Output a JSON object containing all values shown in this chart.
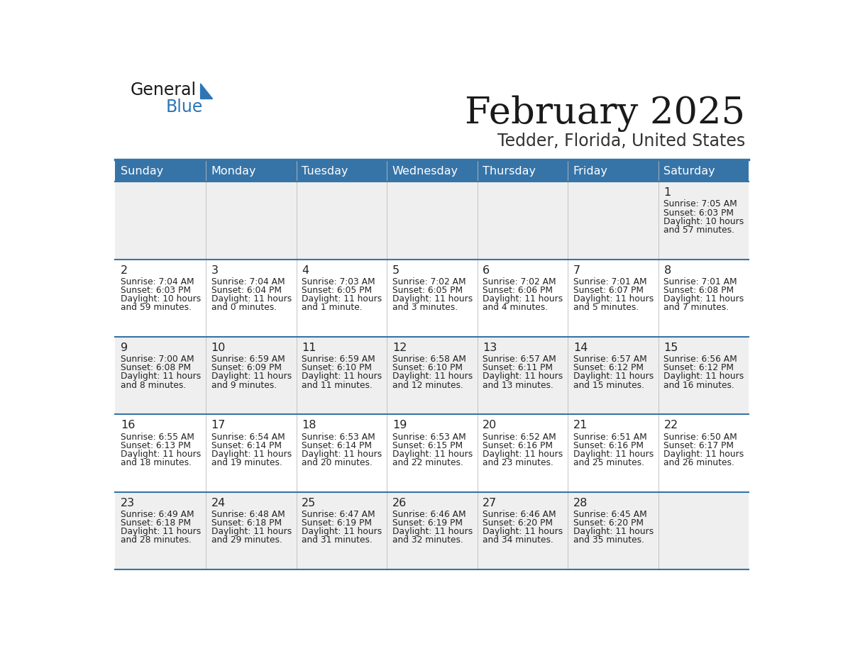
{
  "title": "February 2025",
  "subtitle": "Tedder, Florida, United States",
  "header_bg": "#3674A8",
  "header_text_color": "#FFFFFF",
  "day_names": [
    "Sunday",
    "Monday",
    "Tuesday",
    "Wednesday",
    "Thursday",
    "Friday",
    "Saturday"
  ],
  "row_odd_bg": "#EFEFEF",
  "row_even_bg": "#FFFFFF",
  "cell_text_color": "#222222",
  "day_num_color": "#222222",
  "border_color": "#3674A8",
  "weeks": [
    [
      {
        "day": null,
        "sunrise": null,
        "sunset": null,
        "daylight": null
      },
      {
        "day": null,
        "sunrise": null,
        "sunset": null,
        "daylight": null
      },
      {
        "day": null,
        "sunrise": null,
        "sunset": null,
        "daylight": null
      },
      {
        "day": null,
        "sunrise": null,
        "sunset": null,
        "daylight": null
      },
      {
        "day": null,
        "sunrise": null,
        "sunset": null,
        "daylight": null
      },
      {
        "day": null,
        "sunrise": null,
        "sunset": null,
        "daylight": null
      },
      {
        "day": 1,
        "sunrise": "7:05 AM",
        "sunset": "6:03 PM",
        "daylight": "10 hours and 57 minutes."
      }
    ],
    [
      {
        "day": 2,
        "sunrise": "7:04 AM",
        "sunset": "6:03 PM",
        "daylight": "10 hours and 59 minutes."
      },
      {
        "day": 3,
        "sunrise": "7:04 AM",
        "sunset": "6:04 PM",
        "daylight": "11 hours and 0 minutes."
      },
      {
        "day": 4,
        "sunrise": "7:03 AM",
        "sunset": "6:05 PM",
        "daylight": "11 hours and 1 minute."
      },
      {
        "day": 5,
        "sunrise": "7:02 AM",
        "sunset": "6:05 PM",
        "daylight": "11 hours and 3 minutes."
      },
      {
        "day": 6,
        "sunrise": "7:02 AM",
        "sunset": "6:06 PM",
        "daylight": "11 hours and 4 minutes."
      },
      {
        "day": 7,
        "sunrise": "7:01 AM",
        "sunset": "6:07 PM",
        "daylight": "11 hours and 5 minutes."
      },
      {
        "day": 8,
        "sunrise": "7:01 AM",
        "sunset": "6:08 PM",
        "daylight": "11 hours and 7 minutes."
      }
    ],
    [
      {
        "day": 9,
        "sunrise": "7:00 AM",
        "sunset": "6:08 PM",
        "daylight": "11 hours and 8 minutes."
      },
      {
        "day": 10,
        "sunrise": "6:59 AM",
        "sunset": "6:09 PM",
        "daylight": "11 hours and 9 minutes."
      },
      {
        "day": 11,
        "sunrise": "6:59 AM",
        "sunset": "6:10 PM",
        "daylight": "11 hours and 11 minutes."
      },
      {
        "day": 12,
        "sunrise": "6:58 AM",
        "sunset": "6:10 PM",
        "daylight": "11 hours and 12 minutes."
      },
      {
        "day": 13,
        "sunrise": "6:57 AM",
        "sunset": "6:11 PM",
        "daylight": "11 hours and 13 minutes."
      },
      {
        "day": 14,
        "sunrise": "6:57 AM",
        "sunset": "6:12 PM",
        "daylight": "11 hours and 15 minutes."
      },
      {
        "day": 15,
        "sunrise": "6:56 AM",
        "sunset": "6:12 PM",
        "daylight": "11 hours and 16 minutes."
      }
    ],
    [
      {
        "day": 16,
        "sunrise": "6:55 AM",
        "sunset": "6:13 PM",
        "daylight": "11 hours and 18 minutes."
      },
      {
        "day": 17,
        "sunrise": "6:54 AM",
        "sunset": "6:14 PM",
        "daylight": "11 hours and 19 minutes."
      },
      {
        "day": 18,
        "sunrise": "6:53 AM",
        "sunset": "6:14 PM",
        "daylight": "11 hours and 20 minutes."
      },
      {
        "day": 19,
        "sunrise": "6:53 AM",
        "sunset": "6:15 PM",
        "daylight": "11 hours and 22 minutes."
      },
      {
        "day": 20,
        "sunrise": "6:52 AM",
        "sunset": "6:16 PM",
        "daylight": "11 hours and 23 minutes."
      },
      {
        "day": 21,
        "sunrise": "6:51 AM",
        "sunset": "6:16 PM",
        "daylight": "11 hours and 25 minutes."
      },
      {
        "day": 22,
        "sunrise": "6:50 AM",
        "sunset": "6:17 PM",
        "daylight": "11 hours and 26 minutes."
      }
    ],
    [
      {
        "day": 23,
        "sunrise": "6:49 AM",
        "sunset": "6:18 PM",
        "daylight": "11 hours and 28 minutes."
      },
      {
        "day": 24,
        "sunrise": "6:48 AM",
        "sunset": "6:18 PM",
        "daylight": "11 hours and 29 minutes."
      },
      {
        "day": 25,
        "sunrise": "6:47 AM",
        "sunset": "6:19 PM",
        "daylight": "11 hours and 31 minutes."
      },
      {
        "day": 26,
        "sunrise": "6:46 AM",
        "sunset": "6:19 PM",
        "daylight": "11 hours and 32 minutes."
      },
      {
        "day": 27,
        "sunrise": "6:46 AM",
        "sunset": "6:20 PM",
        "daylight": "11 hours and 34 minutes."
      },
      {
        "day": 28,
        "sunrise": "6:45 AM",
        "sunset": "6:20 PM",
        "daylight": "11 hours and 35 minutes."
      },
      {
        "day": null,
        "sunrise": null,
        "sunset": null,
        "daylight": null
      }
    ]
  ]
}
